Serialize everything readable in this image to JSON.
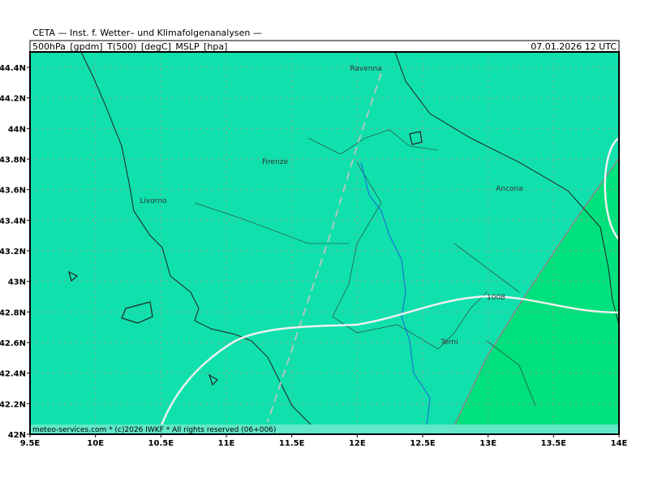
{
  "header": {
    "institute": "CETA — Inst. f. Wetter– und Klimafolgenanalysen —",
    "fields": "500hPa_[gpdm]_T(500)_[degC]_MSLP_[hpa]",
    "valid_time": "07.01.2026 12 UTC"
  },
  "map": {
    "lon_ticks": [
      {
        "value": 9.5,
        "label": "9.5E"
      },
      {
        "value": 10,
        "label": "10E"
      },
      {
        "value": 10.5,
        "label": "10.5E"
      },
      {
        "value": 11,
        "label": "11E"
      },
      {
        "value": 11.5,
        "label": "11.5E"
      },
      {
        "value": 12,
        "label": "12E"
      },
      {
        "value": 12.5,
        "label": "12.5E"
      },
      {
        "value": 13,
        "label": "13E"
      },
      {
        "value": 13.5,
        "label": "13.5E"
      },
      {
        "value": 14,
        "label": "14E"
      }
    ],
    "lat_ticks": [
      {
        "value": 42,
        "label": "42N"
      },
      {
        "value": 42.2,
        "label": "42.2N"
      },
      {
        "value": 42.4,
        "label": "42.4N"
      },
      {
        "value": 42.6,
        "label": "42.6N"
      },
      {
        "value": 42.8,
        "label": "42.8N"
      },
      {
        "value": 43,
        "label": "43N"
      },
      {
        "value": 43.2,
        "label": "43.2N"
      },
      {
        "value": 43.4,
        "label": "43.4N"
      },
      {
        "value": 43.6,
        "label": "43.6N"
      },
      {
        "value": 43.8,
        "label": "43.8N"
      },
      {
        "value": 44,
        "label": "44N"
      },
      {
        "value": 44.2,
        "label": "44.2N"
      },
      {
        "value": 44.4,
        "label": "44.4N"
      }
    ],
    "places": [
      "Ravenna",
      "Firenze",
      "Livorno",
      "Ancona",
      "Terni"
    ],
    "isobar_label": "1008"
  },
  "footer": "meteo-services.com * (c)2026 IWKF * All rights reserved (06+006)"
}
